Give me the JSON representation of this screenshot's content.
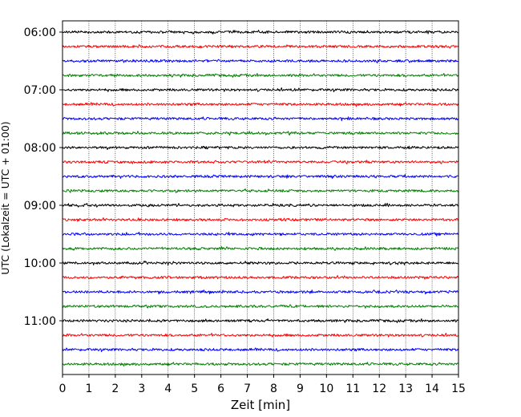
{
  "chart_data": {
    "type": "line",
    "title": "",
    "xlabel": "Zeit  [min]",
    "ylabel": "UTC (Lokalzeit = UTC + 01:00)",
    "xlim": [
      0,
      15
    ],
    "xticks": [
      0,
      1,
      2,
      3,
      4,
      5,
      6,
      7,
      8,
      9,
      10,
      11,
      12,
      13,
      14,
      15
    ],
    "xtick_labels": [
      "0",
      "1",
      "2",
      "3",
      "4",
      "5",
      "6",
      "7",
      "8",
      "9",
      "10",
      "11",
      "12",
      "13",
      "14",
      "15"
    ],
    "grid": "vertical-dotted",
    "ytick_labels": [
      "06:00",
      "07:00",
      "08:00",
      "09:00",
      "10:00",
      "11:00"
    ],
    "ytick_rows": [
      0,
      4,
      8,
      12,
      16,
      20
    ],
    "row_interval_minutes": 15,
    "row_start": "06:00",
    "row_count": 24,
    "colors": [
      "#000000",
      "#ff0000",
      "#0000ff",
      "#008000"
    ]
  }
}
